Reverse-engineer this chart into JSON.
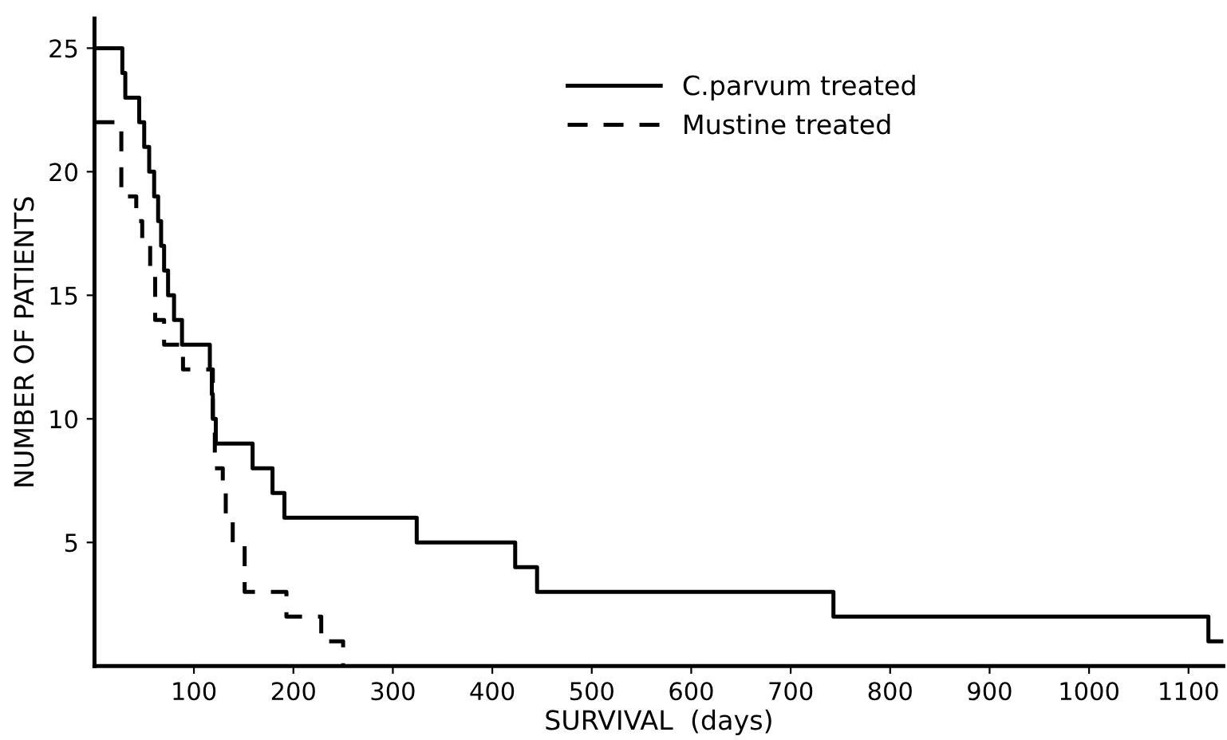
{
  "chart_data": {
    "type": "step",
    "xlabel": "SURVIVAL  (days)",
    "ylabel": "NUMBER OF PATIENTS",
    "xlim": [
      0,
      1135
    ],
    "ylim": [
      0,
      26.2
    ],
    "xticks": [
      100,
      200,
      300,
      400,
      500,
      600,
      700,
      800,
      900,
      1000,
      1100
    ],
    "yticks": [
      5,
      10,
      15,
      20,
      25
    ],
    "grid": false,
    "legend": "top right",
    "marker": "none",
    "series": [
      {
        "name": "C.parvum treated",
        "color": "#000000",
        "line_style": "solid",
        "x": [
          0,
          28,
          31,
          45,
          50,
          55,
          60,
          64,
          67,
          70,
          74,
          80,
          88,
          116,
          118,
          119,
          122,
          159,
          179,
          191,
          324,
          423,
          445,
          743,
          1120,
          1135
        ],
        "values": [
          25,
          24,
          23,
          22,
          21,
          20,
          19,
          18,
          17,
          16,
          15,
          14,
          13,
          12,
          11,
          10,
          9,
          8,
          7,
          6,
          5,
          4,
          3,
          2,
          1,
          1
        ]
      },
      {
        "name": "Mustine treated",
        "color": "#000000",
        "line_style": "dashed",
        "x": [
          0,
          27,
          42,
          48,
          56,
          61,
          70,
          89,
          119,
          121,
          129,
          132,
          139,
          151,
          193,
          228,
          250
        ],
        "values": [
          22,
          19,
          18,
          17,
          16,
          14,
          13,
          12,
          10,
          8,
          7,
          6,
          5,
          3,
          2,
          1,
          0
        ]
      }
    ]
  }
}
